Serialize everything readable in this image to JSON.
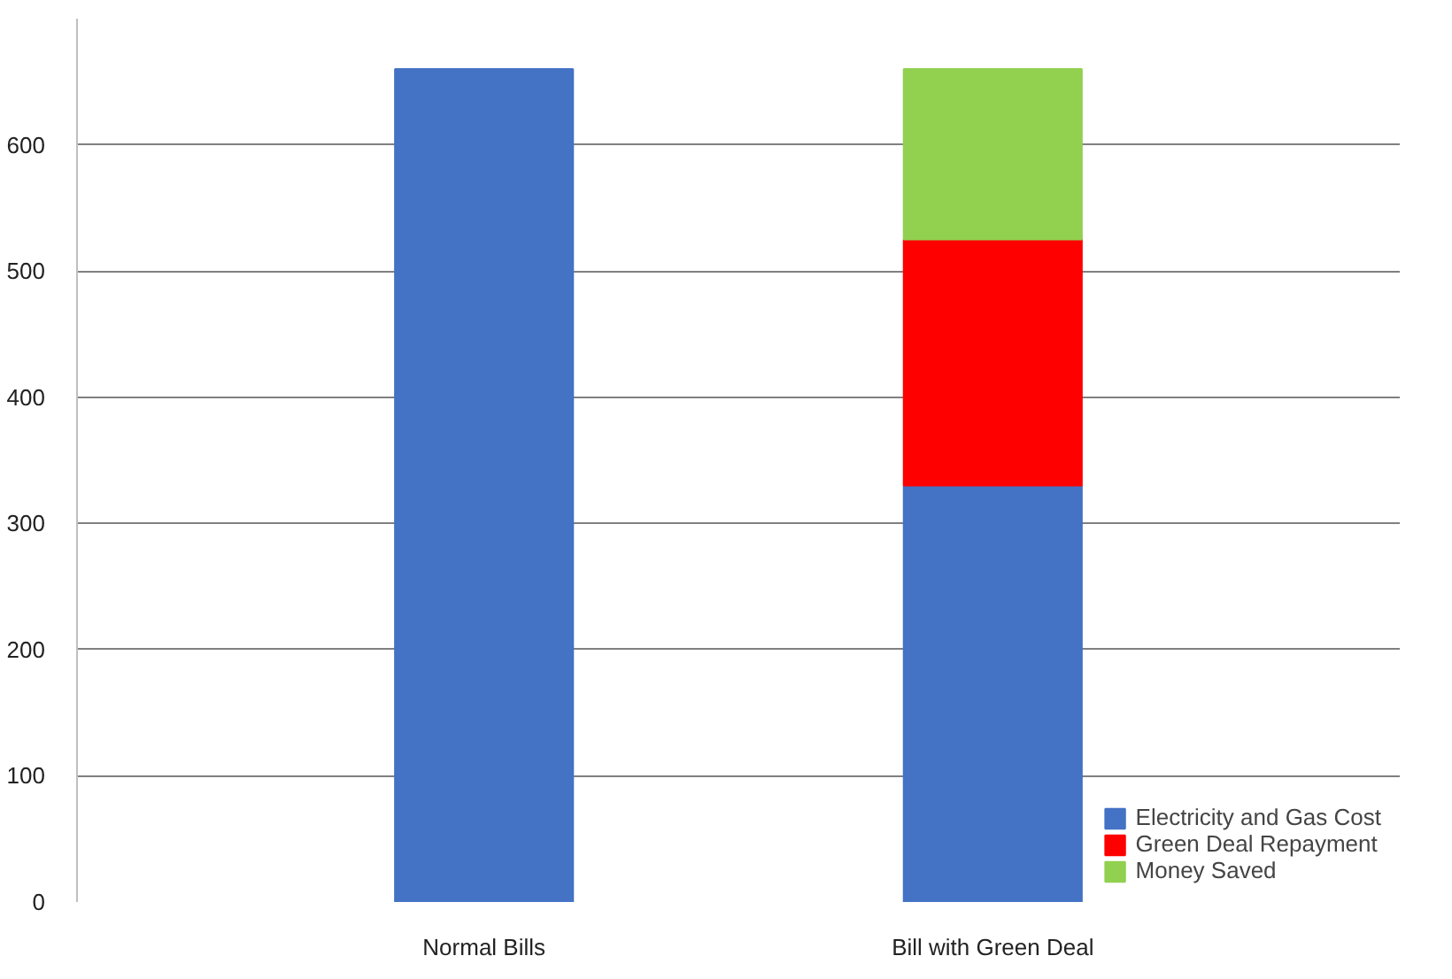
{
  "chart_data": {
    "type": "bar",
    "stacked": true,
    "categories": [
      "Normal Bills",
      "Bill with Green Deal"
    ],
    "series": [
      {
        "name": "Electricity and Gas Cost",
        "color": "#4472c4",
        "values": [
          660,
          330
        ]
      },
      {
        "name": "Green Deal Repayment",
        "color": "#ff0000",
        "values": [
          0,
          195
        ]
      },
      {
        "name": "Money Saved",
        "color": "#92d050",
        "values": [
          0,
          135
        ]
      }
    ],
    "ylim": [
      0,
      700
    ],
    "yticks": [
      0,
      100,
      200,
      300,
      400,
      500,
      600
    ],
    "grid": "y",
    "legend": "bottom right"
  }
}
